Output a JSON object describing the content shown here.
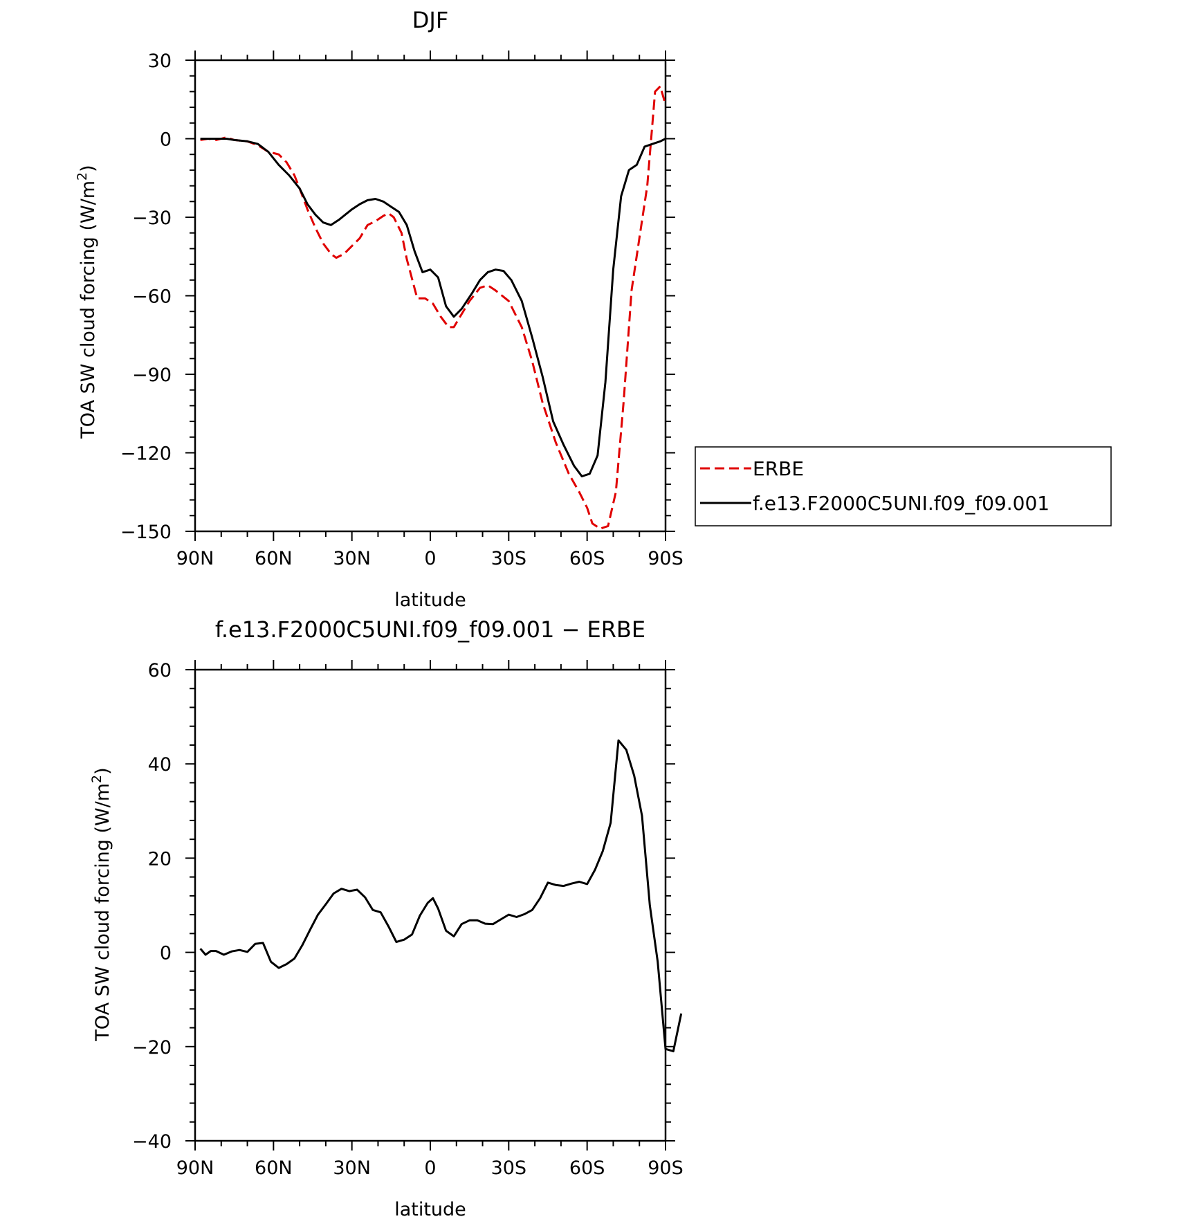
{
  "chart_data": [
    {
      "type": "line",
      "title": "DJF",
      "xlabel": "latitude",
      "ylabel": "TOA SW cloud forcing (W/m²)",
      "ylabel_main": "TOA SW cloud forcing (W/m",
      "ylabel_sup": "2",
      "ylabel_close": ")",
      "xlim": [
        90,
        -90
      ],
      "ylim": [
        -150,
        30
      ],
      "x_ticks": [
        {
          "value": 90,
          "label": "90N"
        },
        {
          "value": 60,
          "label": "60N"
        },
        {
          "value": 30,
          "label": "30N"
        },
        {
          "value": 0,
          "label": "0"
        },
        {
          "value": -30,
          "label": "30S"
        },
        {
          "value": -60,
          "label": "60S"
        },
        {
          "value": -90,
          "label": "90S"
        }
      ],
      "y_ticks": [
        {
          "value": 30,
          "label": "30"
        },
        {
          "value": 0,
          "label": "0"
        },
        {
          "value": -30,
          "label": "−30"
        },
        {
          "value": -60,
          "label": "−60"
        },
        {
          "value": -90,
          "label": "−90"
        },
        {
          "value": -120,
          "label": "−120"
        },
        {
          "value": -150,
          "label": "−150"
        }
      ],
      "grid": false,
      "legend": "right",
      "series": [
        {
          "name": "ERBE",
          "color": "#e00000",
          "dash": "dashed",
          "points": [
            [
              88,
              -0.5
            ],
            [
              85,
              0
            ],
            [
              82,
              -0.5
            ],
            [
              78,
              0.5
            ],
            [
              75,
              -0.5
            ],
            [
              70,
              -1
            ],
            [
              66,
              -2.5
            ],
            [
              62,
              -5
            ],
            [
              58,
              -6
            ],
            [
              55,
              -9
            ],
            [
              52,
              -14
            ],
            [
              50,
              -19
            ],
            [
              47,
              -27
            ],
            [
              44,
              -34
            ],
            [
              41,
              -40
            ],
            [
              38,
              -44
            ],
            [
              36,
              -45.5
            ],
            [
              33,
              -44
            ],
            [
              30,
              -41
            ],
            [
              27,
              -38
            ],
            [
              24,
              -33
            ],
            [
              21,
              -31.5
            ],
            [
              18,
              -29.5
            ],
            [
              16,
              -28.5
            ],
            [
              14,
              -30
            ],
            [
              11,
              -36
            ],
            [
              9,
              -46
            ],
            [
              5,
              -61
            ],
            [
              2,
              -61
            ],
            [
              -1,
              -63
            ],
            [
              -4,
              -68
            ],
            [
              -7,
              -72
            ],
            [
              -9,
              -72
            ],
            [
              -12,
              -67
            ],
            [
              -15,
              -62
            ],
            [
              -19,
              -57
            ],
            [
              -22,
              -56
            ],
            [
              -25,
              -58
            ],
            [
              -30,
              -62
            ],
            [
              -35,
              -72
            ],
            [
              -39,
              -85
            ],
            [
              -43,
              -101
            ],
            [
              -48,
              -116
            ],
            [
              -53,
              -128
            ],
            [
              -57,
              -135
            ],
            [
              -60,
              -141
            ],
            [
              -62,
              -147
            ],
            [
              -65,
              -149
            ],
            [
              -68,
              -148
            ],
            [
              -71,
              -135
            ],
            [
              -74,
              -100
            ],
            [
              -77,
              -58
            ],
            [
              -80,
              -38
            ],
            [
              -83,
              -18
            ],
            [
              -86,
              18
            ],
            [
              -88,
              20
            ],
            [
              -90,
              13
            ]
          ]
        },
        {
          "name": "f.e13.F2000C5UNI.f09_f09.001",
          "color": "#000000",
          "dash": "solid",
          "points": [
            [
              88,
              0
            ],
            [
              85,
              0
            ],
            [
              82,
              0
            ],
            [
              78,
              0
            ],
            [
              75,
              -0.5
            ],
            [
              70,
              -1
            ],
            [
              66,
              -2
            ],
            [
              62,
              -5
            ],
            [
              58,
              -10
            ],
            [
              54,
              -14
            ],
            [
              50,
              -19
            ],
            [
              47,
              -25
            ],
            [
              44,
              -29
            ],
            [
              41,
              -32
            ],
            [
              38,
              -33
            ],
            [
              35,
              -31
            ],
            [
              30,
              -27
            ],
            [
              27,
              -25
            ],
            [
              24,
              -23.5
            ],
            [
              21,
              -23
            ],
            [
              18,
              -24
            ],
            [
              15,
              -26
            ],
            [
              12,
              -28
            ],
            [
              9,
              -33
            ],
            [
              6,
              -43
            ],
            [
              3,
              -51
            ],
            [
              0,
              -50
            ],
            [
              -3,
              -53
            ],
            [
              -6,
              -64
            ],
            [
              -9,
              -68
            ],
            [
              -12,
              -65
            ],
            [
              -16,
              -59
            ],
            [
              -19,
              -54
            ],
            [
              -22,
              -51
            ],
            [
              -25,
              -50
            ],
            [
              -28,
              -50.5
            ],
            [
              -31,
              -54
            ],
            [
              -35,
              -62
            ],
            [
              -39,
              -76
            ],
            [
              -43,
              -91
            ],
            [
              -47,
              -108
            ],
            [
              -51,
              -117
            ],
            [
              -55,
              -125
            ],
            [
              -58,
              -129
            ],
            [
              -61,
              -128
            ],
            [
              -64,
              -121
            ],
            [
              -67,
              -93
            ],
            [
              -70,
              -50
            ],
            [
              -73,
              -22
            ],
            [
              -76,
              -12
            ],
            [
              -79,
              -10
            ],
            [
              -82,
              -3
            ],
            [
              -85,
              -2
            ],
            [
              -88,
              -1
            ],
            [
              -90,
              0
            ]
          ]
        }
      ]
    },
    {
      "type": "line",
      "title": "f.e13.F2000C5UNI.f09_f09.001 − ERBE",
      "xlabel": "latitude",
      "ylabel": "TOA SW cloud forcing (W/m²)",
      "ylabel_main": "TOA SW cloud forcing (W/m",
      "ylabel_sup": "2",
      "ylabel_close": ")",
      "xlim": [
        90,
        -90
      ],
      "ylim": [
        -40,
        60
      ],
      "x_ticks": [
        {
          "value": 90,
          "label": "90N"
        },
        {
          "value": 60,
          "label": "60N"
        },
        {
          "value": 30,
          "label": "30N"
        },
        {
          "value": 0,
          "label": "0"
        },
        {
          "value": -30,
          "label": "30S"
        },
        {
          "value": -60,
          "label": "60S"
        },
        {
          "value": -90,
          "label": "90S"
        }
      ],
      "y_ticks": [
        {
          "value": 60,
          "label": "60"
        },
        {
          "value": 40,
          "label": "40"
        },
        {
          "value": 20,
          "label": "20"
        },
        {
          "value": 0,
          "label": "0"
        },
        {
          "value": -20,
          "label": "−20"
        },
        {
          "value": -40,
          "label": "−40"
        }
      ],
      "grid": false,
      "series": [
        {
          "color": "#000000",
          "dash": "solid",
          "points": [
            [
              88,
              0.8
            ],
            [
              86,
              -0.5
            ],
            [
              84,
              0.3
            ],
            [
              82,
              0.3
            ],
            [
              79,
              -0.5
            ],
            [
              76,
              0.2
            ],
            [
              73,
              0.5
            ],
            [
              70,
              0.1
            ],
            [
              67,
              1.8
            ],
            [
              64,
              2
            ],
            [
              61,
              -2
            ],
            [
              58,
              -3.3
            ],
            [
              55,
              -2.5
            ],
            [
              52,
              -1.3
            ],
            [
              49,
              1.5
            ],
            [
              46,
              4.8
            ],
            [
              43,
              8
            ],
            [
              40,
              10.2
            ],
            [
              37,
              12.5
            ],
            [
              34,
              13.5
            ],
            [
              31,
              13
            ],
            [
              28,
              13.3
            ],
            [
              25,
              11.7
            ],
            [
              22,
              9
            ],
            [
              19,
              8.5
            ],
            [
              16,
              5.5
            ],
            [
              13,
              2.2
            ],
            [
              10,
              2.7
            ],
            [
              7,
              3.8
            ],
            [
              4,
              7.8
            ],
            [
              1,
              10.5
            ],
            [
              -1,
              11.5
            ],
            [
              -3,
              9.3
            ],
            [
              -6,
              4.6
            ],
            [
              -9,
              3.4
            ],
            [
              -12,
              6
            ],
            [
              -15,
              6.8
            ],
            [
              -18,
              6.8
            ],
            [
              -21,
              6.1
            ],
            [
              -24,
              6
            ],
            [
              -27,
              7
            ],
            [
              -30,
              8
            ],
            [
              -33,
              7.5
            ],
            [
              -36,
              8.1
            ],
            [
              -39,
              9
            ],
            [
              -42,
              11.5
            ],
            [
              -45,
              14.8
            ],
            [
              -48,
              14.3
            ],
            [
              -51,
              14.1
            ],
            [
              -54,
              14.6
            ],
            [
              -57,
              15
            ],
            [
              -60,
              14.5
            ],
            [
              -63,
              17.5
            ],
            [
              -66,
              21.5
            ],
            [
              -69,
              27.5
            ],
            [
              -72,
              45
            ],
            [
              -75,
              43
            ],
            [
              -78,
              37.5
            ],
            [
              -81,
              29
            ],
            [
              -84,
              10
            ],
            [
              -87,
              -2
            ],
            [
              -90,
              -20.5
            ],
            [
              -93,
              -21
            ],
            [
              -96,
              -13
            ]
          ]
        }
      ]
    }
  ]
}
